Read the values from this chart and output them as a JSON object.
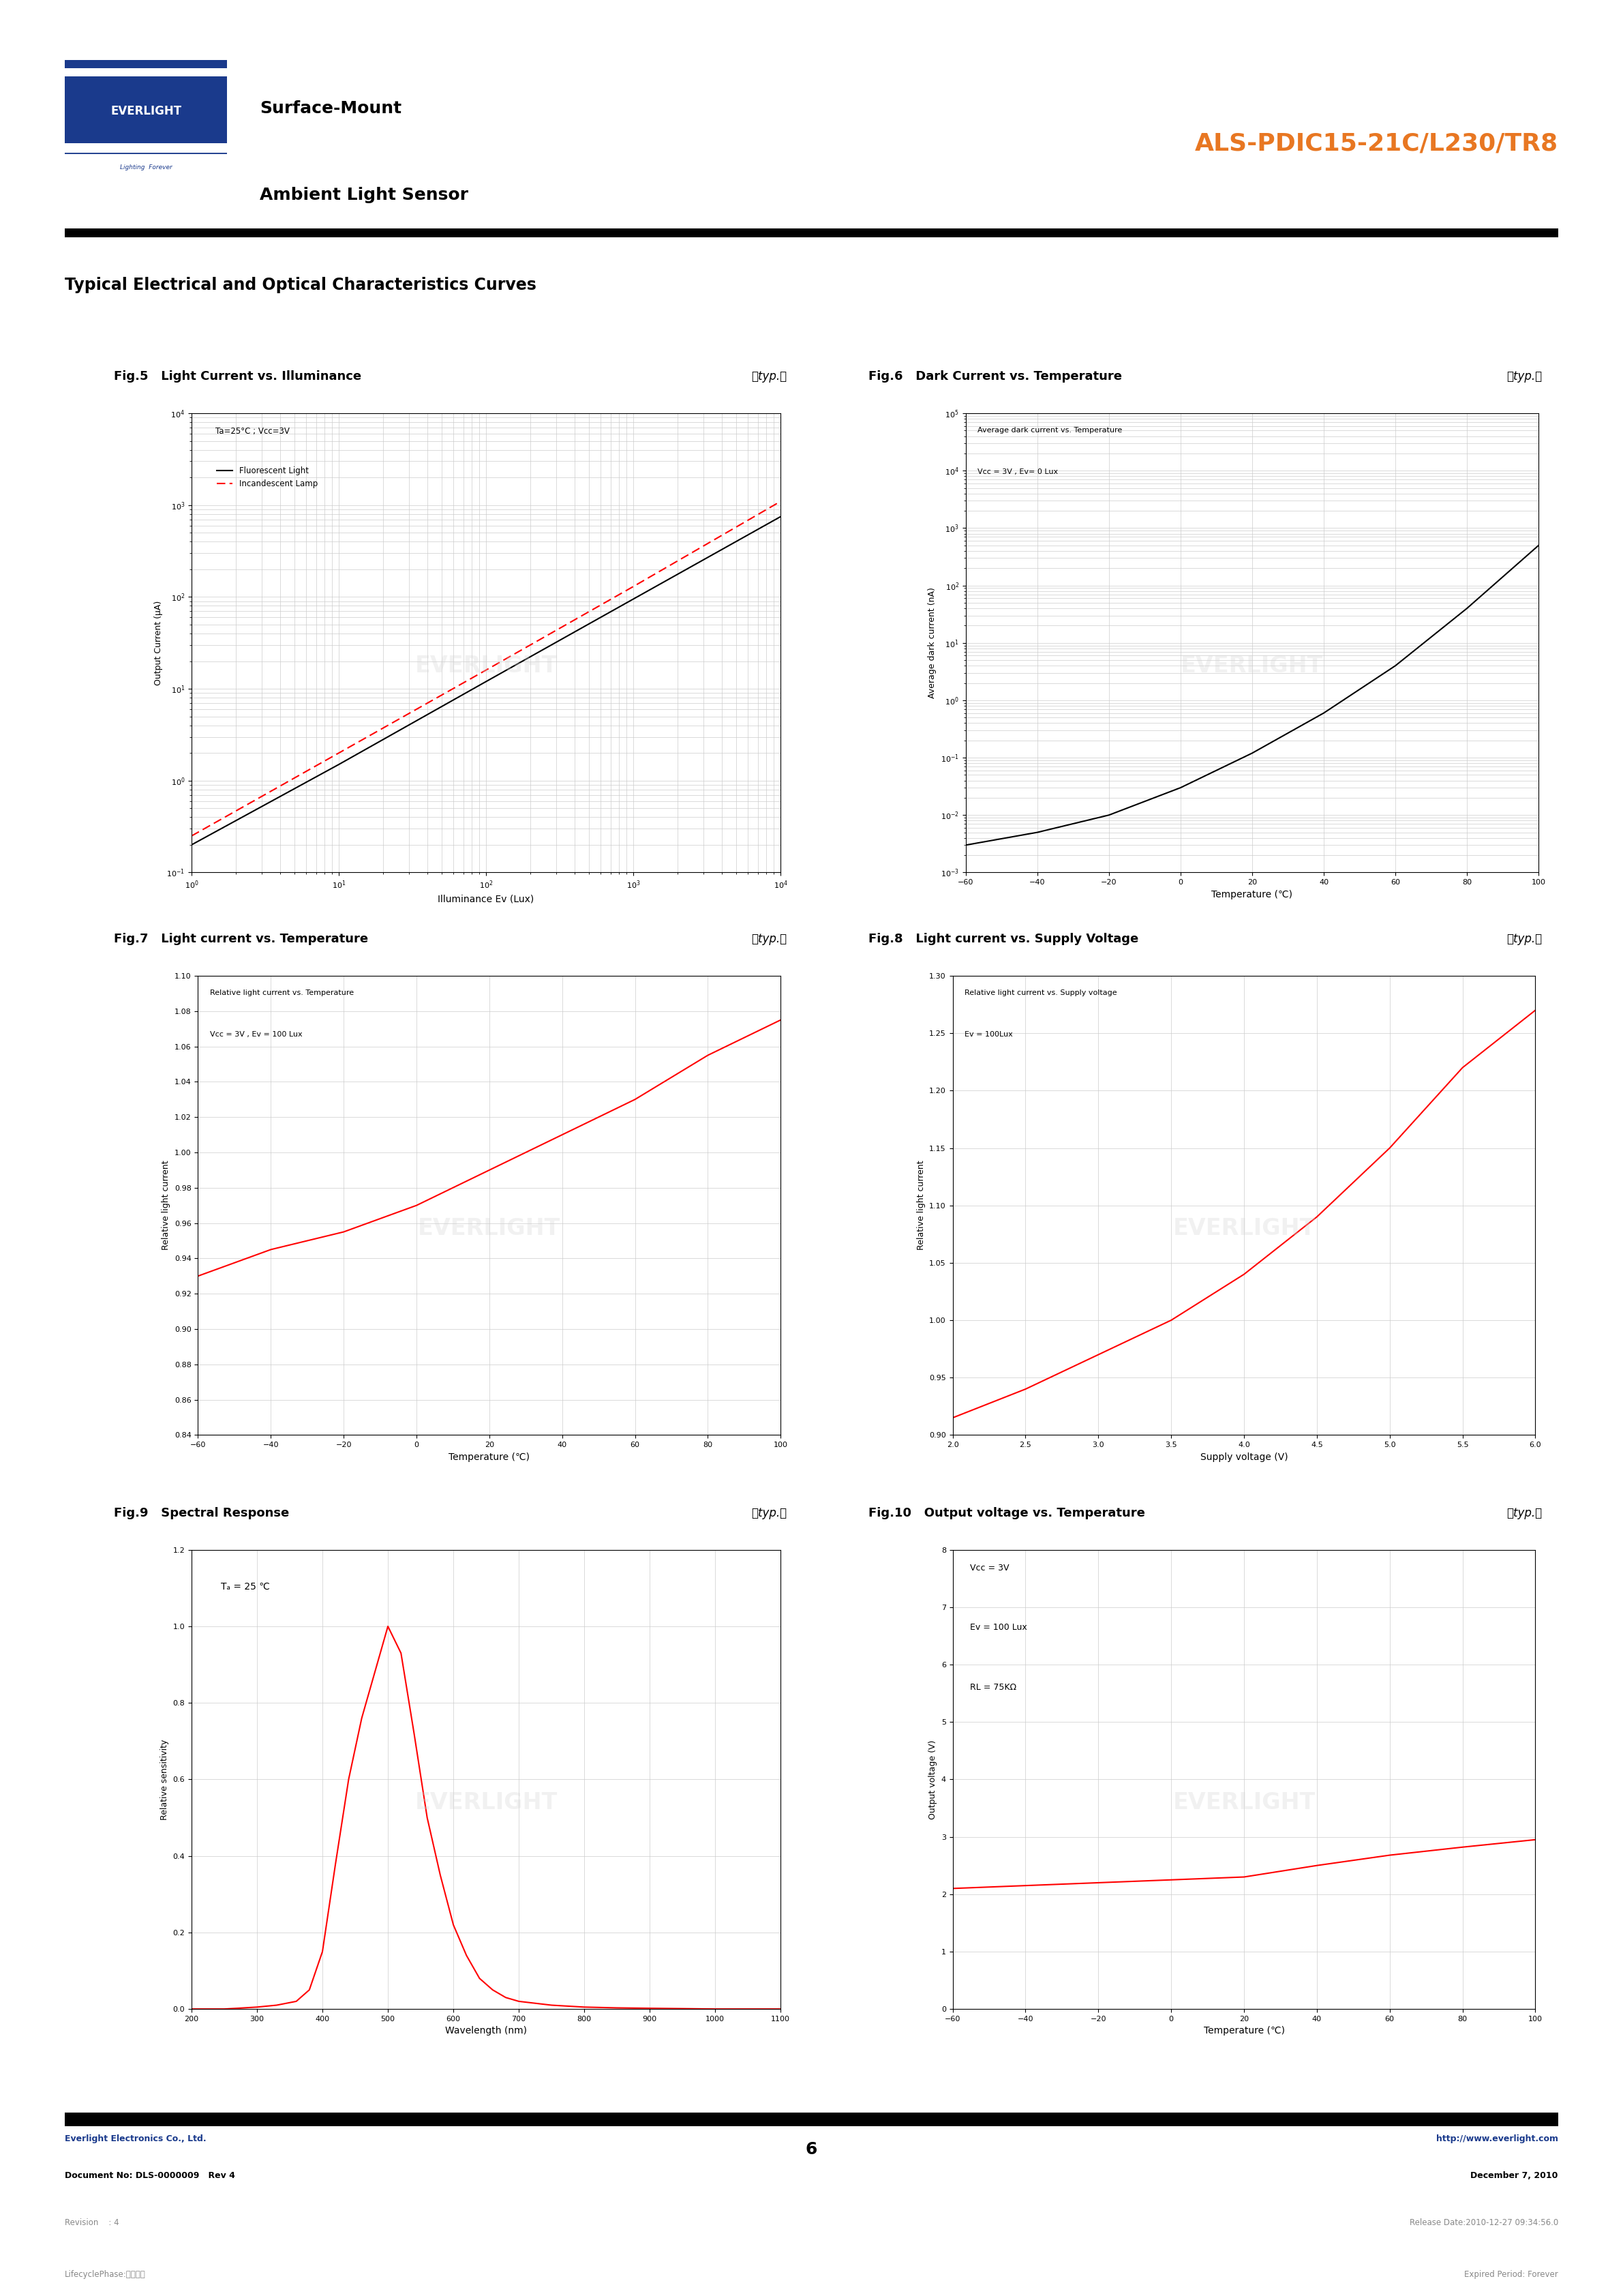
{
  "page_title_left1": "Surface-Mount",
  "page_title_left2": "Ambient Light Sensor",
  "page_title_right": "ALS-PDIC15-21C/L230/TR8",
  "section_title": "Typical Electrical and Optical Characteristics Curves",
  "fig5_title": "Fig.5   Light Current vs. Illuminance",
  "fig6_title": "Fig.6   Dark Current vs. Temperature",
  "fig7_title": "Fig.7   Light current vs. Temperature",
  "fig8_title": "Fig.8   Light current vs. Supply Voltage",
  "fig9_title": "Fig.9   Spectral Response",
  "fig10_title": "Fig.10   Output voltage vs. Temperature",
  "typ_label": "（typ.）",
  "footer_company": "Everlight Electronics Co., Ltd.",
  "footer_url": "http://www.everlight.com",
  "footer_doc": "Document No: DLS-0000009   Rev 4",
  "footer_date": "December 7, 2010",
  "footer_page": "6",
  "footer_revision": "Revision    : 4",
  "footer_release": "Release Date:2010-12-27 09:34:56.0",
  "footer_lifecycle": "LifecyclePhase:正式發行",
  "footer_expired": "Expired Period: Forever",
  "everlight_logo_color": "#1a3a8c",
  "orange_color": "#e87722",
  "blue_color": "#1a3a8c",
  "red_color": "#cc0000",
  "gray_color": "#888888",
  "fig5": {
    "xlabel": "Illuminance Ev (Lux)",
    "ylabel": "Output Current (μA)",
    "legend_note": "Ta=25°C ; Vcc=3V",
    "legend_fl": "Fluorescent Light",
    "legend_il": "Incandescent Lamp",
    "fl_x": [
      1,
      10,
      100,
      1000,
      10000
    ],
    "fl_y": [
      0.2,
      1.5,
      12,
      95,
      750
    ],
    "il_x": [
      1,
      10,
      100,
      1000,
      10000
    ],
    "il_y": [
      0.25,
      2.0,
      16,
      130,
      1100
    ],
    "xmin": 1,
    "xmax": 10000,
    "ymin": 0.1,
    "ymax": 10000
  },
  "fig6": {
    "xlabel": "Temperature (℃)",
    "ylabel": "Average dark current (nA)",
    "legend_note1": "Average dark current vs. Temperature",
    "legend_note2": "Vcc = 3V , Ev= 0 Lux",
    "x": [
      -60,
      -40,
      -20,
      0,
      20,
      40,
      60,
      80,
      100
    ],
    "y": [
      0.003,
      0.005,
      0.01,
      0.03,
      0.12,
      0.6,
      4,
      40,
      500
    ],
    "xmin": -60,
    "xmax": 100,
    "ymin": 0.001,
    "ymax": 100000
  },
  "fig7": {
    "xlabel": "Temperature (℃)",
    "ylabel": "Relative light current",
    "legend_note1": "Relative light current vs. Temperature",
    "legend_note2": "Vcc = 3V , Ev = 100 Lux",
    "x": [
      -60,
      -40,
      -20,
      0,
      20,
      40,
      60,
      80,
      100
    ],
    "y": [
      0.93,
      0.945,
      0.955,
      0.97,
      0.99,
      1.01,
      1.03,
      1.055,
      1.075
    ],
    "xmin": -60,
    "xmax": 100,
    "ymin": 0.84,
    "ymax": 1.1,
    "yticks": [
      0.84,
      0.86,
      0.88,
      0.9,
      0.92,
      0.94,
      0.96,
      0.98,
      1.0,
      1.02,
      1.04,
      1.06,
      1.08,
      1.1
    ]
  },
  "fig8": {
    "xlabel": "Supply voltage (V)",
    "ylabel": "Relative light current",
    "legend_note1": "Relative light current vs. Supply voltage",
    "legend_note2": "Ev = 100Lux",
    "x": [
      2.0,
      2.5,
      3.0,
      3.5,
      4.0,
      4.5,
      5.0,
      5.5,
      6.0
    ],
    "y": [
      0.915,
      0.94,
      0.97,
      1.0,
      1.04,
      1.09,
      1.15,
      1.22,
      1.27
    ],
    "xmin": 2.0,
    "xmax": 6.0,
    "ymin": 0.9,
    "ymax": 1.3,
    "yticks": [
      0.9,
      0.95,
      1.0,
      1.05,
      1.1,
      1.15,
      1.2,
      1.25,
      1.3
    ],
    "xticks": [
      2.0,
      2.5,
      3.0,
      3.5,
      4.0,
      4.5,
      5.0,
      5.5,
      6.0
    ]
  },
  "fig9": {
    "xlabel": "Wavelength (nm)",
    "ylabel": "Relative sensitivity",
    "note": "Tₐ = 25 ℃",
    "x": [
      200,
      250,
      300,
      330,
      360,
      380,
      400,
      420,
      440,
      460,
      480,
      500,
      520,
      540,
      560,
      580,
      600,
      620,
      640,
      660,
      680,
      700,
      750,
      800,
      850,
      900,
      950,
      1000,
      1050,
      1100
    ],
    "y": [
      0.0,
      0.0,
      0.005,
      0.01,
      0.02,
      0.05,
      0.15,
      0.38,
      0.6,
      0.76,
      0.88,
      1.0,
      0.93,
      0.72,
      0.5,
      0.35,
      0.22,
      0.14,
      0.08,
      0.05,
      0.03,
      0.02,
      0.01,
      0.005,
      0.003,
      0.002,
      0.001,
      0.0,
      0.0,
      0.0
    ],
    "xmin": 200,
    "xmax": 1100,
    "ymin": 0.0,
    "ymax": 1.2,
    "xticks": [
      200,
      300,
      400,
      500,
      600,
      700,
      800,
      900,
      1000,
      1100
    ],
    "yticks": [
      0.0,
      0.2,
      0.4,
      0.6,
      0.8,
      1.0,
      1.2
    ]
  },
  "fig10": {
    "xlabel": "Temperature (℃)",
    "ylabel": "Output voltage (V)",
    "note1": "Vcc = 3V",
    "note2": "Ev = 100 Lux",
    "note3": "RL = 75KΩ",
    "x": [
      -60,
      -40,
      -20,
      0,
      20,
      40,
      60,
      80,
      100
    ],
    "y": [
      2.1,
      2.15,
      2.2,
      2.25,
      2.3,
      2.5,
      2.68,
      2.82,
      2.95
    ],
    "xmin": -60,
    "xmax": 100,
    "ymin": 0,
    "ymax": 8,
    "yticks": [
      0,
      1,
      2,
      3,
      4,
      5,
      6,
      7,
      8
    ],
    "xticks": [
      -60,
      -40,
      -20,
      0,
      20,
      40,
      60,
      80,
      100
    ]
  }
}
